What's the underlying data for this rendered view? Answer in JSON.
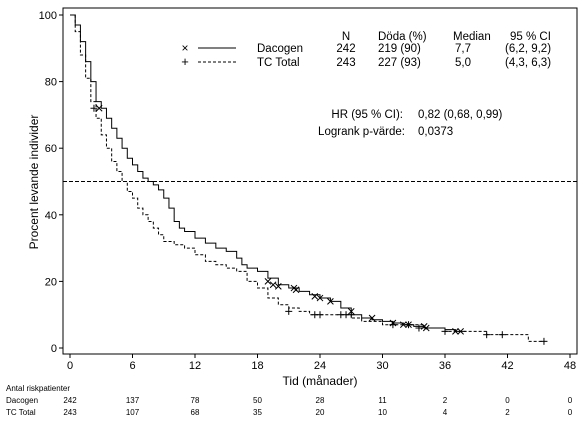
{
  "chart_data": {
    "type": "line",
    "xlabel": "Tid (månader)",
    "ylabel": "Procent levande individer",
    "xlim": [
      0,
      48
    ],
    "ylim": [
      0,
      100
    ],
    "xticks": [
      0,
      6,
      12,
      18,
      24,
      30,
      36,
      42,
      48
    ],
    "yticks": [
      0,
      20,
      40,
      60,
      80,
      100
    ],
    "reference_line": {
      "y": 50,
      "style": "dashed"
    },
    "legend_headers": [
      "N",
      "Döda (%)",
      "Median",
      "95 % CI"
    ],
    "series": [
      {
        "name": "Dacogen",
        "marker": "×",
        "line_style": "solid",
        "n": "242",
        "deaths": "219 (90)",
        "median": "7,7",
        "ci": "(6,2, 9,2)",
        "x": [
          0,
          0.5,
          1,
          1.5,
          2,
          2.5,
          3,
          3.5,
          4,
          4.5,
          5,
          5.5,
          6,
          6.5,
          7,
          7.5,
          8,
          8.5,
          9,
          9.5,
          10,
          10.5,
          11,
          12,
          13,
          14,
          15,
          16,
          16.5,
          17,
          18,
          19,
          20,
          21,
          22,
          23,
          24,
          25,
          26,
          27,
          28,
          29,
          30,
          31,
          32,
          33,
          34,
          35,
          36,
          37,
          38
        ],
        "y": [
          100,
          97,
          92,
          86,
          80,
          74,
          72,
          69,
          66,
          63,
          60,
          57,
          55,
          53,
          51,
          50,
          49,
          47.5,
          45,
          42,
          38,
          36,
          35,
          33,
          31.5,
          30,
          29,
          27,
          25,
          24,
          23,
          21,
          19,
          18,
          17,
          16,
          15,
          14,
          12,
          10,
          9,
          8.5,
          8,
          7.5,
          7,
          6.5,
          6,
          6,
          5.5,
          5,
          5
        ],
        "censor_x": [
          2.8,
          19,
          19.5,
          20,
          21.5,
          21.7,
          23.5,
          24,
          25,
          27,
          29,
          31,
          32,
          32.5,
          34,
          34.2,
          37,
          37.5
        ],
        "censor_y": [
          72,
          20,
          19,
          18.5,
          18,
          17.5,
          15.5,
          15,
          14,
          11,
          9,
          7.5,
          7,
          7,
          6.5,
          6,
          5,
          5
        ]
      },
      {
        "name": "TC Total",
        "marker": "+",
        "line_style": "dashed",
        "n": "243",
        "deaths": "227 (93)",
        "median": "5,0",
        "ci": "(4,3, 6,3)",
        "x": [
          0,
          0.5,
          1,
          1.5,
          2,
          2.5,
          3,
          3.5,
          4,
          4.5,
          5,
          5.5,
          6,
          6.5,
          7,
          7.5,
          8,
          8.5,
          9,
          10,
          11,
          12,
          13,
          14,
          15,
          16,
          17,
          18,
          19,
          20,
          21,
          22,
          23,
          24,
          25,
          26,
          27,
          28,
          30,
          32,
          34,
          36,
          38,
          40,
          42,
          44,
          45.5
        ],
        "y": [
          100,
          95,
          88,
          81,
          74,
          69,
          64,
          60,
          56,
          53,
          50,
          47,
          45,
          42,
          40,
          38,
          36,
          34,
          32,
          31,
          30,
          28,
          26,
          25,
          24,
          23,
          20,
          18,
          15,
          13,
          12,
          11,
          10,
          10,
          10,
          10,
          9,
          8,
          7,
          7,
          6,
          5,
          5,
          4,
          4,
          2,
          2
        ],
        "censor_x": [
          2.3,
          21,
          23.5,
          24,
          26,
          26.5,
          27,
          31,
          32.5,
          33.5,
          36,
          40,
          41.5,
          45.5
        ],
        "censor_y": [
          72,
          11,
          10,
          10,
          10,
          10,
          10,
          7,
          7,
          6,
          5,
          4,
          4,
          2
        ]
      }
    ],
    "stats": {
      "hr_label": "HR (95 % CI):",
      "hr_value": "0,82 (0,68, 0,99)",
      "logrank_label": "Logrank p-värde:",
      "logrank_value": "0,0373"
    },
    "risk_table": {
      "title": "Antal riskpatienter",
      "times": [
        0,
        6,
        12,
        18,
        24,
        30,
        36,
        42,
        48
      ],
      "rows": [
        {
          "label": "Dacogen",
          "values": [
            "242",
            "137",
            "78",
            "50",
            "28",
            "11",
            "2",
            "0",
            "0"
          ]
        },
        {
          "label": "TC Total",
          "values": [
            "243",
            "107",
            "68",
            "35",
            "20",
            "10",
            "4",
            "2",
            "0"
          ]
        }
      ]
    }
  }
}
